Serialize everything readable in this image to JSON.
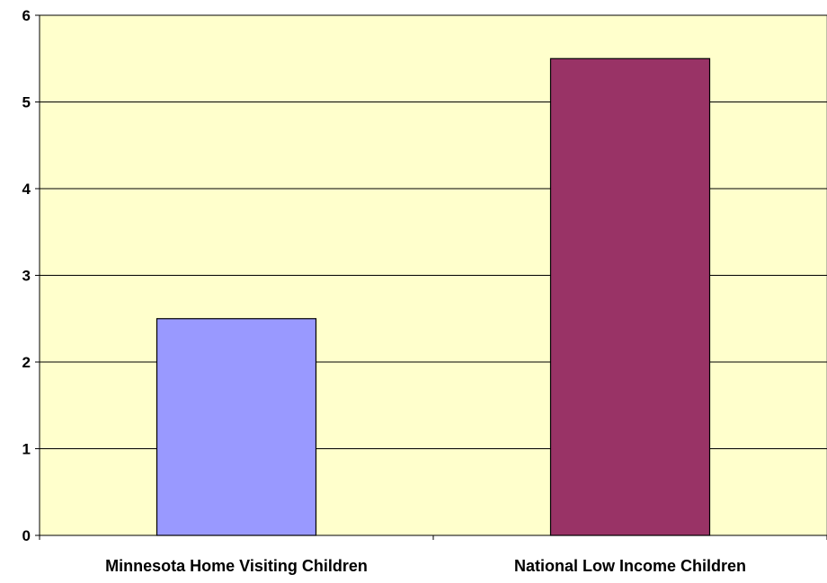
{
  "chart_data": {
    "type": "bar",
    "categories": [
      "Minnesota Home Visiting Children",
      "National Low Income Children"
    ],
    "values": [
      2.5,
      5.5
    ],
    "bar_colors": [
      "#9999ff",
      "#993366"
    ],
    "title": "",
    "xlabel": "",
    "ylabel": "",
    "ylim": [
      0,
      6
    ],
    "yticks": [
      0,
      1,
      2,
      3,
      4,
      5,
      6
    ],
    "grid": true,
    "plot_background": "#ffffcc",
    "legend": "none"
  }
}
